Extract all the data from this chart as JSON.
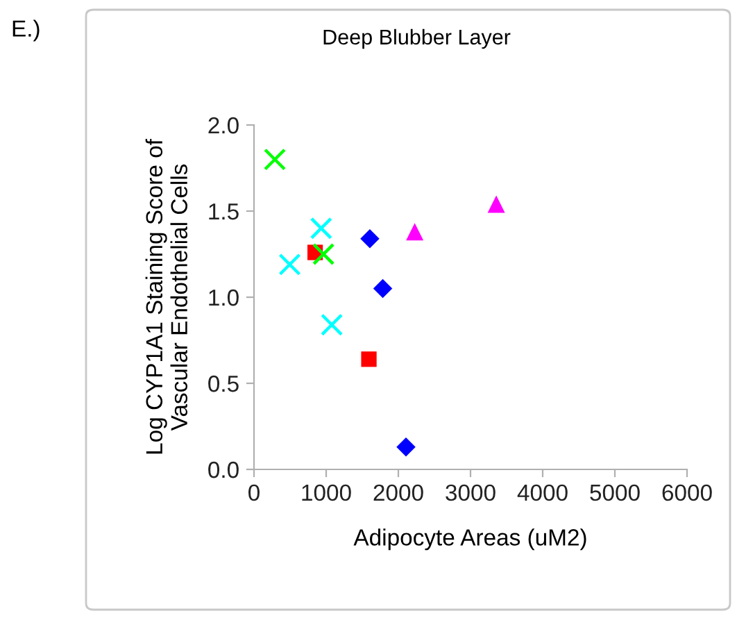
{
  "chart_data": {
    "type": "scatter",
    "title": "Deep Blubber Layer",
    "xlabel": "Adipocyte Areas (uM2)",
    "ylabel": "Log CYP1A1 Staining Score of\nVascular Endothelial Cells",
    "annotations": [
      "E.)"
    ],
    "xlim": [
      0,
      6000
    ],
    "xticks": [
      0,
      1000,
      2000,
      3000,
      4000,
      5000,
      6000
    ],
    "ylim": [
      0,
      2
    ],
    "yticks": [
      {
        "value": 0,
        "label": "0.0"
      },
      {
        "value": 0.5,
        "label": "0.5"
      },
      {
        "value": 1,
        "label": "1.0"
      },
      {
        "value": 1.5,
        "label": "1.5"
      },
      {
        "value": 2,
        "label": "2.0"
      }
    ],
    "grid": false,
    "legend": false,
    "series": [
      {
        "color": "#0000ff",
        "marker": "diamond",
        "x": [
          1605,
          1784,
          2106
        ],
        "values": [
          1.34,
          1.05,
          0.13
        ]
      },
      {
        "color": "#ff0000",
        "marker": "square",
        "x": [
          847,
          1592
        ],
        "values": [
          1.26,
          0.64
        ]
      },
      {
        "color": "#ff00ff",
        "marker": "triangle",
        "x": [
          2227,
          3357
        ],
        "values": [
          1.38,
          1.54
        ]
      },
      {
        "color": "#00ffff",
        "marker": "cross",
        "x": [
          931,
          495,
          1078
        ],
        "values": [
          1.4,
          1.19,
          0.84
        ]
      },
      {
        "color": "#00ff00",
        "marker": "cross",
        "x": [
          963
        ],
        "values": [
          1.25
        ]
      },
      {
        "color": "#00ff00",
        "marker": "cross",
        "x": [
          289
        ],
        "values": [
          1.8
        ]
      }
    ]
  }
}
